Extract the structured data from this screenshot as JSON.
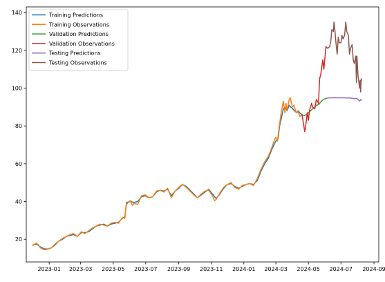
{
  "chart_data": {
    "type": "line",
    "title": "",
    "xlabel": "",
    "ylabel": "",
    "legend_position": "top-left",
    "grid": false,
    "x_ticks": [
      "2023-01",
      "2023-03",
      "2023-05",
      "2023-07",
      "2023-09",
      "2023-11",
      "2024-01",
      "2024-03",
      "2024-05",
      "2024-07",
      "2024-09"
    ],
    "y_ticks": [
      20,
      40,
      60,
      80,
      100,
      120,
      140
    ],
    "xlim": [
      "2022-11-19",
      "2024-09-10"
    ],
    "ylim": [
      8,
      143
    ],
    "series": [
      {
        "name": "Training Predictions",
        "color": "#1f77b4",
        "points": [
          [
            "2022-12-01",
            17
          ],
          [
            "2022-12-08",
            17.5
          ],
          [
            "2022-12-15",
            16
          ],
          [
            "2022-12-22",
            15
          ],
          [
            "2022-12-29",
            14.8
          ],
          [
            "2023-01-05",
            15.5
          ],
          [
            "2023-01-12",
            17
          ],
          [
            "2023-01-19",
            19
          ],
          [
            "2023-01-26",
            20
          ],
          [
            "2023-02-02",
            21.5
          ],
          [
            "2023-02-09",
            22
          ],
          [
            "2023-02-16",
            22.5
          ],
          [
            "2023-02-23",
            21.5
          ],
          [
            "2023-03-02",
            23.5
          ],
          [
            "2023-03-09",
            23.5
          ],
          [
            "2023-03-16",
            24
          ],
          [
            "2023-03-23",
            25.5
          ],
          [
            "2023-03-30",
            27
          ],
          [
            "2023-04-06",
            27.5
          ],
          [
            "2023-04-13",
            28
          ],
          [
            "2023-04-20",
            27
          ],
          [
            "2023-04-27",
            28
          ],
          [
            "2023-05-04",
            28.5
          ],
          [
            "2023-05-11",
            29
          ],
          [
            "2023-05-18",
            31
          ],
          [
            "2023-05-23",
            32
          ],
          [
            "2023-05-26",
            39.5
          ],
          [
            "2023-06-02",
            40
          ],
          [
            "2023-06-09",
            39.5
          ],
          [
            "2023-06-16",
            40
          ],
          [
            "2023-06-23",
            42.5
          ],
          [
            "2023-06-30",
            43
          ],
          [
            "2023-07-07",
            42
          ],
          [
            "2023-07-14",
            42.5
          ],
          [
            "2023-07-21",
            45
          ],
          [
            "2023-07-28",
            46
          ],
          [
            "2023-08-04",
            45.5
          ],
          [
            "2023-08-11",
            46.5
          ],
          [
            "2023-08-18",
            43
          ],
          [
            "2023-08-25",
            45.5
          ],
          [
            "2023-09-01",
            47
          ],
          [
            "2023-09-08",
            49
          ],
          [
            "2023-09-15",
            48
          ],
          [
            "2023-09-22",
            46
          ],
          [
            "2023-09-29",
            44
          ],
          [
            "2023-10-06",
            42
          ],
          [
            "2023-10-13",
            43.5
          ],
          [
            "2023-10-20",
            45
          ],
          [
            "2023-10-27",
            46.5
          ],
          [
            "2023-11-03",
            44
          ],
          [
            "2023-11-10",
            41.5
          ],
          [
            "2023-11-17",
            44
          ],
          [
            "2023-11-24",
            47
          ],
          [
            "2023-12-01",
            49
          ],
          [
            "2023-12-08",
            49.5
          ],
          [
            "2023-12-15",
            48
          ],
          [
            "2023-12-22",
            47
          ],
          [
            "2023-12-29",
            48
          ],
          [
            "2024-01-05",
            49
          ],
          [
            "2024-01-12",
            49.5
          ],
          [
            "2024-01-19",
            49
          ],
          [
            "2024-01-26",
            51
          ],
          [
            "2024-02-02",
            56
          ],
          [
            "2024-02-09",
            60
          ],
          [
            "2024-02-16",
            63
          ],
          [
            "2024-02-23",
            68
          ],
          [
            "2024-03-01",
            72
          ],
          [
            "2024-03-05",
            73
          ],
          [
            "2024-03-08",
            80
          ],
          [
            "2024-03-12",
            85
          ],
          [
            "2024-03-15",
            89
          ],
          [
            "2024-03-19",
            90
          ],
          [
            "2024-03-22",
            88
          ],
          [
            "2024-03-26",
            91
          ],
          [
            "2024-03-29",
            90
          ],
          [
            "2024-04-02",
            89
          ],
          [
            "2024-04-05",
            88
          ],
          [
            "2024-04-09",
            87
          ],
          [
            "2024-04-12",
            88
          ],
          [
            "2024-04-16",
            86.5
          ],
          [
            "2024-04-19",
            86
          ]
        ]
      },
      {
        "name": "Training Observations",
        "color": "#ff7f0e",
        "points": [
          [
            "2022-12-01",
            16.5
          ],
          [
            "2022-12-05",
            17.5
          ],
          [
            "2022-12-08",
            18
          ],
          [
            "2022-12-12",
            17
          ],
          [
            "2022-12-15",
            15.5
          ],
          [
            "2022-12-19",
            15
          ],
          [
            "2022-12-22",
            14.5
          ],
          [
            "2022-12-27",
            14.5
          ],
          [
            "2022-12-30",
            15
          ],
          [
            "2023-01-05",
            15.5
          ],
          [
            "2023-01-12",
            17.5
          ],
          [
            "2023-01-19",
            19
          ],
          [
            "2023-01-26",
            20.5
          ],
          [
            "2023-02-02",
            21.5
          ],
          [
            "2023-02-09",
            22.5
          ],
          [
            "2023-02-16",
            23
          ],
          [
            "2023-02-23",
            21.5
          ],
          [
            "2023-03-02",
            24
          ],
          [
            "2023-03-09",
            23
          ],
          [
            "2023-03-16",
            24.5
          ],
          [
            "2023-03-23",
            26
          ],
          [
            "2023-03-30",
            27
          ],
          [
            "2023-04-06",
            28
          ],
          [
            "2023-04-13",
            27.5
          ],
          [
            "2023-04-20",
            27
          ],
          [
            "2023-04-27",
            28.5
          ],
          [
            "2023-05-04",
            29
          ],
          [
            "2023-05-11",
            28.5
          ],
          [
            "2023-05-18",
            31.5
          ],
          [
            "2023-05-23",
            31
          ],
          [
            "2023-05-25",
            38
          ],
          [
            "2023-05-29",
            39.5
          ],
          [
            "2023-06-02",
            40.5
          ],
          [
            "2023-06-06",
            38
          ],
          [
            "2023-06-09",
            39
          ],
          [
            "2023-06-16",
            38.5
          ],
          [
            "2023-06-23",
            43
          ],
          [
            "2023-06-30",
            43.5
          ],
          [
            "2023-07-07",
            42
          ],
          [
            "2023-07-14",
            42.5
          ],
          [
            "2023-07-21",
            45.5
          ],
          [
            "2023-07-28",
            46
          ],
          [
            "2023-08-04",
            45
          ],
          [
            "2023-08-11",
            47
          ],
          [
            "2023-08-18",
            42
          ],
          [
            "2023-08-25",
            45.5
          ],
          [
            "2023-09-01",
            47.5
          ],
          [
            "2023-09-08",
            49
          ],
          [
            "2023-09-15",
            47.5
          ],
          [
            "2023-09-22",
            45.5
          ],
          [
            "2023-09-29",
            43.5
          ],
          [
            "2023-10-06",
            42
          ],
          [
            "2023-10-13",
            44
          ],
          [
            "2023-10-20",
            45.5
          ],
          [
            "2023-10-27",
            46
          ],
          [
            "2023-11-03",
            43
          ],
          [
            "2023-11-07",
            40.5
          ],
          [
            "2023-11-10",
            41
          ],
          [
            "2023-11-17",
            44.5
          ],
          [
            "2023-11-24",
            47.5
          ],
          [
            "2023-12-01",
            49
          ],
          [
            "2023-12-08",
            50
          ],
          [
            "2023-12-15",
            47.5
          ],
          [
            "2023-12-22",
            46.5
          ],
          [
            "2023-12-29",
            48.5
          ],
          [
            "2024-01-05",
            49
          ],
          [
            "2024-01-12",
            49.5
          ],
          [
            "2024-01-19",
            48.5
          ],
          [
            "2024-01-26",
            52
          ],
          [
            "2024-02-02",
            57
          ],
          [
            "2024-02-09",
            61
          ],
          [
            "2024-02-16",
            64
          ],
          [
            "2024-02-23",
            69
          ],
          [
            "2024-02-28",
            73
          ],
          [
            "2024-03-01",
            74
          ],
          [
            "2024-03-04",
            72
          ],
          [
            "2024-03-07",
            79
          ],
          [
            "2024-03-11",
            87
          ],
          [
            "2024-03-13",
            90
          ],
          [
            "2024-03-15",
            93
          ],
          [
            "2024-03-18",
            87
          ],
          [
            "2024-03-20",
            92
          ],
          [
            "2024-03-22",
            88
          ],
          [
            "2024-03-26",
            94
          ],
          [
            "2024-03-28",
            95
          ],
          [
            "2024-04-01",
            90
          ],
          [
            "2024-04-04",
            91
          ],
          [
            "2024-04-08",
            87
          ],
          [
            "2024-04-11",
            88
          ],
          [
            "2024-04-15",
            85
          ],
          [
            "2024-04-19",
            86
          ]
        ]
      },
      {
        "name": "Validation Predictions",
        "color": "#2ca02c",
        "points": [
          [
            "2024-04-19",
            86
          ],
          [
            "2024-04-23",
            85.5
          ],
          [
            "2024-04-27",
            86
          ],
          [
            "2024-05-01",
            87
          ],
          [
            "2024-05-05",
            88
          ],
          [
            "2024-05-09",
            89
          ],
          [
            "2024-05-13",
            90
          ],
          [
            "2024-05-17",
            91
          ],
          [
            "2024-05-21",
            91.5
          ],
          [
            "2024-05-25",
            93
          ],
          [
            "2024-05-29",
            94
          ],
          [
            "2024-06-03",
            94.5
          ],
          [
            "2024-06-06",
            94.8
          ]
        ]
      },
      {
        "name": "Validation Observations",
        "color": "#d62728",
        "points": [
          [
            "2024-04-19",
            86
          ],
          [
            "2024-04-22",
            81
          ],
          [
            "2024-04-24",
            77
          ],
          [
            "2024-04-26",
            80
          ],
          [
            "2024-04-29",
            87
          ],
          [
            "2024-05-01",
            83
          ],
          [
            "2024-05-03",
            88
          ],
          [
            "2024-05-07",
            92
          ],
          [
            "2024-05-09",
            90
          ],
          [
            "2024-05-13",
            89
          ],
          [
            "2024-05-16",
            94
          ],
          [
            "2024-05-20",
            92
          ],
          [
            "2024-05-22",
            105
          ],
          [
            "2024-05-24",
            107
          ],
          [
            "2024-05-28",
            115
          ],
          [
            "2024-05-30",
            110
          ],
          [
            "2024-06-03",
            122
          ],
          [
            "2024-06-06",
            121
          ]
        ]
      },
      {
        "name": "Testing Predictions",
        "color": "#9467bd",
        "points": [
          [
            "2024-06-06",
            94.8
          ],
          [
            "2024-06-13",
            94.9
          ],
          [
            "2024-06-20",
            94.9
          ],
          [
            "2024-06-27",
            94.9
          ],
          [
            "2024-07-04",
            94.9
          ],
          [
            "2024-07-11",
            94.8
          ],
          [
            "2024-07-18",
            94.8
          ],
          [
            "2024-07-25",
            94.5
          ],
          [
            "2024-07-31",
            94.5
          ],
          [
            "2024-08-02",
            94
          ],
          [
            "2024-08-05",
            93.2
          ],
          [
            "2024-08-07",
            94
          ],
          [
            "2024-08-09",
            93.5
          ]
        ]
      },
      {
        "name": "Testing Observations",
        "color": "#8c564b",
        "points": [
          [
            "2024-06-06",
            121
          ],
          [
            "2024-06-10",
            122
          ],
          [
            "2024-06-12",
            125
          ],
          [
            "2024-06-14",
            131
          ],
          [
            "2024-06-17",
            130
          ],
          [
            "2024-06-18",
            135
          ],
          [
            "2024-06-20",
            130
          ],
          [
            "2024-06-21",
            126
          ],
          [
            "2024-06-24",
            118
          ],
          [
            "2024-06-26",
            127
          ],
          [
            "2024-06-28",
            124
          ],
          [
            "2024-07-01",
            124
          ],
          [
            "2024-07-03",
            128
          ],
          [
            "2024-07-05",
            126
          ],
          [
            "2024-07-08",
            128
          ],
          [
            "2024-07-10",
            135
          ],
          [
            "2024-07-12",
            130
          ],
          [
            "2024-07-15",
            128
          ],
          [
            "2024-07-17",
            118
          ],
          [
            "2024-07-19",
            121
          ],
          [
            "2024-07-22",
            123
          ],
          [
            "2024-07-24",
            115
          ],
          [
            "2024-07-26",
            113
          ],
          [
            "2024-07-29",
            117
          ],
          [
            "2024-07-30",
            103
          ],
          [
            "2024-07-31",
            117
          ],
          [
            "2024-08-02",
            107
          ],
          [
            "2024-08-05",
            100
          ],
          [
            "2024-08-06",
            104
          ],
          [
            "2024-08-07",
            98
          ],
          [
            "2024-08-08",
            105
          ],
          [
            "2024-08-09",
            104
          ]
        ]
      }
    ]
  }
}
